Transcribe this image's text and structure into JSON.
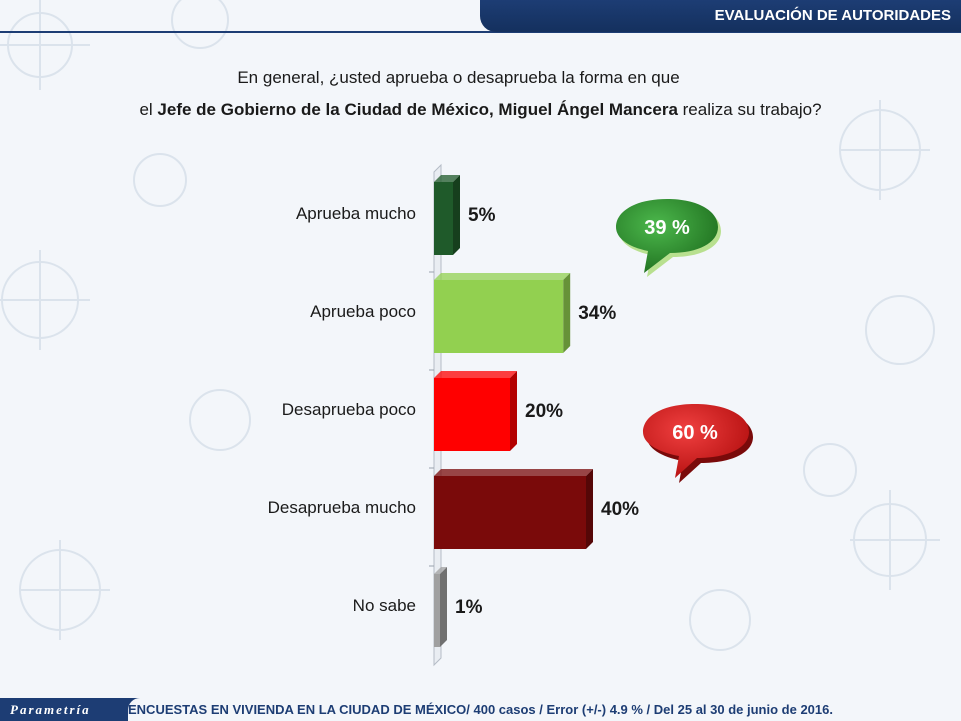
{
  "header": {
    "section_title": "EVALUACIÓN DE AUTORIDADES"
  },
  "question": {
    "line1": "En general, ¿usted aprueba o desaprueba la forma en que",
    "line2_prefix": "el ",
    "line2_bold": "Jefe de Gobierno de la Ciudad de México, Miguel Ángel Mancera",
    "line2_suffix": " realiza su trabajo?"
  },
  "chart_data": {
    "type": "bar",
    "orientation": "horizontal",
    "categories": [
      "Aprueba mucho",
      "Aprueba poco",
      "Desaprueba poco",
      "Desaprueba mucho",
      "No sabe"
    ],
    "values": [
      5,
      34,
      20,
      40,
      1
    ],
    "value_labels": [
      "5%",
      "34%",
      "20%",
      "40%",
      "1%"
    ],
    "colors": [
      "#1f5a2a",
      "#92d050",
      "#ff0000",
      "#7a0a0a",
      "#a0a0a0"
    ],
    "xlim": [
      0,
      40
    ],
    "grid": false,
    "annotations": [
      {
        "text": "39 %",
        "color": "#2e8b2e",
        "group": "aprueba"
      },
      {
        "text": "60 %",
        "color": "#d81e1e",
        "group": "desaprueba"
      }
    ]
  },
  "footer": {
    "brand": "Parametría",
    "note": "ENCUESTAS EN VIVIENDA EN LA CIUDAD DE MÉXICO/ 400 casos / Error (+/-) 4.9 % / Del 25 al 30 de junio de 2016."
  }
}
